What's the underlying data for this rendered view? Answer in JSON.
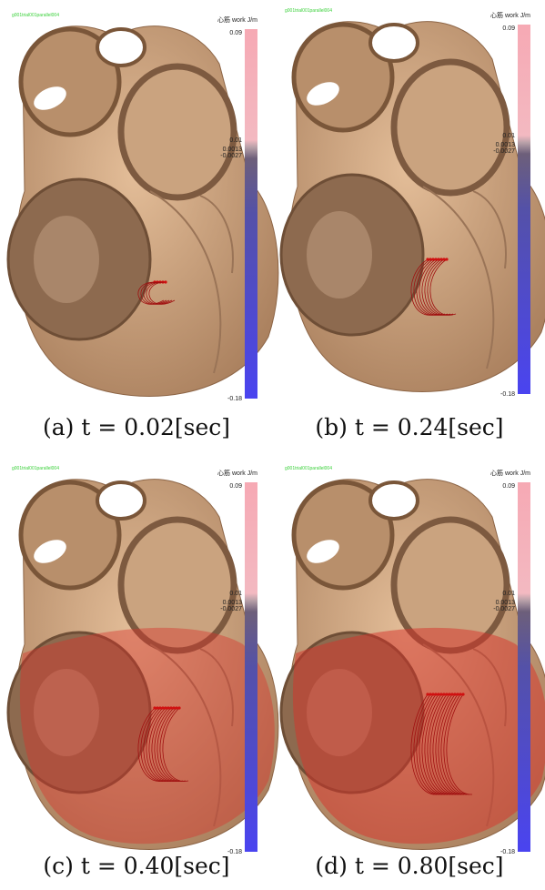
{
  "panels": [
    {
      "caption": "(a) t = 0.02[sec]",
      "run_label": "g001trial001parallel004",
      "colorbar": {
        "title": "心筋 work J/m",
        "labels": [
          "0.09",
          "0.01",
          "0.0013",
          "-0.0027",
          "-0.18"
        ]
      }
    },
    {
      "caption": "(b) t = 0.24[sec]",
      "run_label": "g001trial001parallel004",
      "colorbar": {
        "title": "心筋 work J/m",
        "labels": [
          "0.09",
          "0.01",
          "0.0013",
          "-0.0027",
          "-0.18"
        ]
      }
    },
    {
      "caption": "(c) t = 0.40[sec]",
      "run_label": "g001trial001parallel004",
      "colorbar": {
        "title": "心筋 work J/m",
        "labels": [
          "0.09",
          "0.01",
          "0.0013",
          "-0.0027",
          "-0.18"
        ]
      }
    },
    {
      "caption": "(d) t = 0.80[sec]",
      "run_label": "g001trial001parallel004",
      "colorbar": {
        "title": "心筋 work J/m",
        "labels": [
          "0.09",
          "0.01",
          "0.0013",
          "-0.0027",
          "-0.18"
        ]
      }
    }
  ]
}
